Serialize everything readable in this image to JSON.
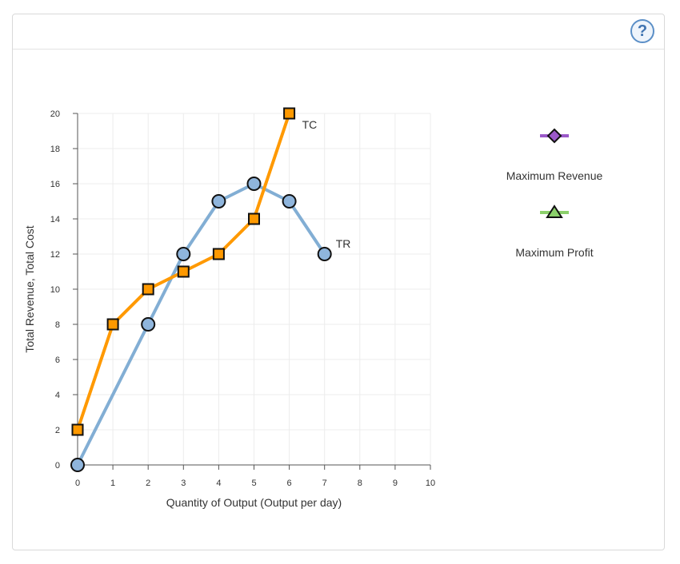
{
  "help": {
    "icon": "help-circle-icon",
    "glyph": "?"
  },
  "chart_data": {
    "type": "line",
    "xlabel": "Quantity of Output (Output per day)",
    "ylabel": "Total Revenue, Total Cost",
    "xlim": [
      0,
      10
    ],
    "ylim": [
      0,
      20
    ],
    "xticks": [
      0,
      1,
      2,
      3,
      4,
      5,
      6,
      7,
      8,
      9,
      10
    ],
    "yticks": [
      0,
      2,
      4,
      6,
      8,
      10,
      12,
      14,
      16,
      18,
      20
    ],
    "grid": true,
    "series": [
      {
        "name": "TR",
        "color": "#82aed4",
        "marker": "circle",
        "marker_fill": "#8fb5dc",
        "x": [
          0,
          2,
          3,
          4,
          5,
          6,
          7
        ],
        "y": [
          0,
          8,
          12,
          15,
          16,
          15,
          12
        ]
      },
      {
        "name": "TC",
        "color": "#ff9900",
        "marker": "square",
        "marker_fill": "#ff9900",
        "x": [
          0,
          1,
          2,
          3,
          4,
          5,
          6
        ],
        "y": [
          2,
          8,
          10,
          11,
          12,
          14,
          20
        ]
      }
    ]
  },
  "legend": {
    "items": [
      {
        "label": "Maximum Revenue",
        "marker": "diamond",
        "line_color": "#9b59c9",
        "fill": "#9b59c9"
      },
      {
        "label": "Maximum Profit",
        "marker": "triangle",
        "line_color": "#8bd06b",
        "fill": "#8bd06b"
      }
    ]
  }
}
